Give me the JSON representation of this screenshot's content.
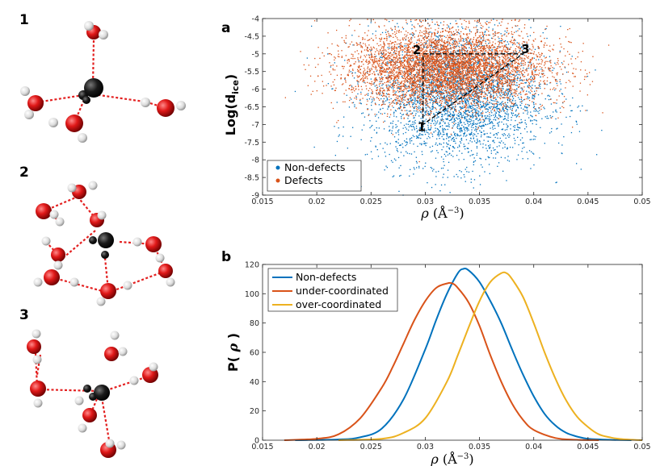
{
  "molecules": {
    "labels": [
      "1",
      "2",
      "3"
    ]
  },
  "panel_a": {
    "label": "a",
    "chart_data": {
      "type": "scatter",
      "title": "",
      "xlabel": "ρ (Å⁻³)",
      "ylabel": "Log(d_ice)",
      "xlim": [
        0.015,
        0.05
      ],
      "ylim": [
        -9,
        -4
      ],
      "x_ticks": [
        "0.015",
        "0.02",
        "0.025",
        "0.03",
        "0.035",
        "0.04",
        "0.045",
        "0.05"
      ],
      "y_ticks": [
        "-4",
        "-4.5",
        "-5",
        "-5.5",
        "-6",
        "-6.5",
        "-7",
        "-7.5",
        "-8",
        "-8.5",
        "-9"
      ],
      "series": [
        {
          "name": "Non-defects",
          "color": "#0072BD",
          "distribution": {
            "x_center": 0.033,
            "x_spread": 0.004,
            "y_center": -6.2,
            "y_spread": 0.95
          }
        },
        {
          "name": "Defects",
          "color": "#D95319",
          "distribution": {
            "x_center": 0.032,
            "x_spread": 0.0045,
            "y_center": -5.4,
            "y_spread": 0.55
          }
        }
      ],
      "annotations": [
        {
          "text": "1",
          "x": 0.0298,
          "y": -7.0
        },
        {
          "text": "2",
          "x": 0.0298,
          "y": -5.0
        },
        {
          "text": "3",
          "x": 0.039,
          "y": -5.0
        }
      ],
      "triangle": [
        [
          0.0298,
          -7.0
        ],
        [
          0.0298,
          -5.0
        ],
        [
          0.039,
          -5.0
        ]
      ],
      "legend": {
        "position": "bottom-left",
        "entries": [
          "Non-defects",
          "Defects"
        ]
      }
    }
  },
  "panel_b": {
    "label": "b",
    "chart_data": {
      "type": "line",
      "title": "",
      "xlabel": "ρ (Å⁻³)",
      "ylabel": "P( ρ )",
      "xlim": [
        0.015,
        0.05
      ],
      "ylim": [
        0,
        120
      ],
      "x_ticks": [
        "0.015",
        "0.02",
        "0.025",
        "0.03",
        "0.035",
        "0.04",
        "0.045",
        "0.05"
      ],
      "y_ticks": [
        "0",
        "20",
        "40",
        "60",
        "80",
        "100",
        "120"
      ],
      "series": [
        {
          "name": "Non-defects",
          "color": "#0072BD",
          "x": [
            0.018,
            0.022,
            0.024,
            0.026,
            0.028,
            0.03,
            0.031,
            0.032,
            0.033,
            0.0335,
            0.034,
            0.035,
            0.036,
            0.037,
            0.038,
            0.039,
            0.04,
            0.041,
            0.042,
            0.043,
            0.044,
            0.045,
            0.047,
            0.049
          ],
          "y": [
            0,
            0.5,
            2,
            8,
            28,
            62,
            82,
            100,
            114,
            117,
            116,
            108,
            95,
            80,
            62,
            45,
            30,
            18,
            10,
            5,
            2.5,
            1,
            0.3,
            0
          ]
        },
        {
          "name": "under-coordinated",
          "color": "#D95319",
          "x": [
            0.017,
            0.02,
            0.022,
            0.024,
            0.026,
            0.027,
            0.028,
            0.029,
            0.03,
            0.031,
            0.032,
            0.0325,
            0.033,
            0.034,
            0.035,
            0.036,
            0.037,
            0.038,
            0.039,
            0.04,
            0.042,
            0.044,
            0.046
          ],
          "y": [
            0,
            1,
            4,
            15,
            36,
            50,
            66,
            82,
            95,
            104,
            107,
            107,
            104,
            94,
            78,
            58,
            40,
            25,
            14,
            7,
            1.5,
            0.3,
            0
          ]
        },
        {
          "name": "over-coordinated",
          "color": "#EDB120",
          "x": [
            0.022,
            0.026,
            0.028,
            0.03,
            0.032,
            0.033,
            0.034,
            0.035,
            0.036,
            0.037,
            0.0375,
            0.038,
            0.039,
            0.04,
            0.041,
            0.042,
            0.043,
            0.044,
            0.045,
            0.046,
            0.047,
            0.048,
            0.05
          ],
          "y": [
            0,
            1,
            5,
            15,
            40,
            58,
            77,
            95,
            108,
            114,
            114,
            110,
            98,
            80,
            60,
            42,
            27,
            16,
            9,
            4,
            2,
            0.8,
            0
          ]
        }
      ],
      "legend": {
        "position": "top-left",
        "entries": [
          "Non-defects",
          "under-coordinated",
          "over-coordinated"
        ]
      }
    }
  }
}
